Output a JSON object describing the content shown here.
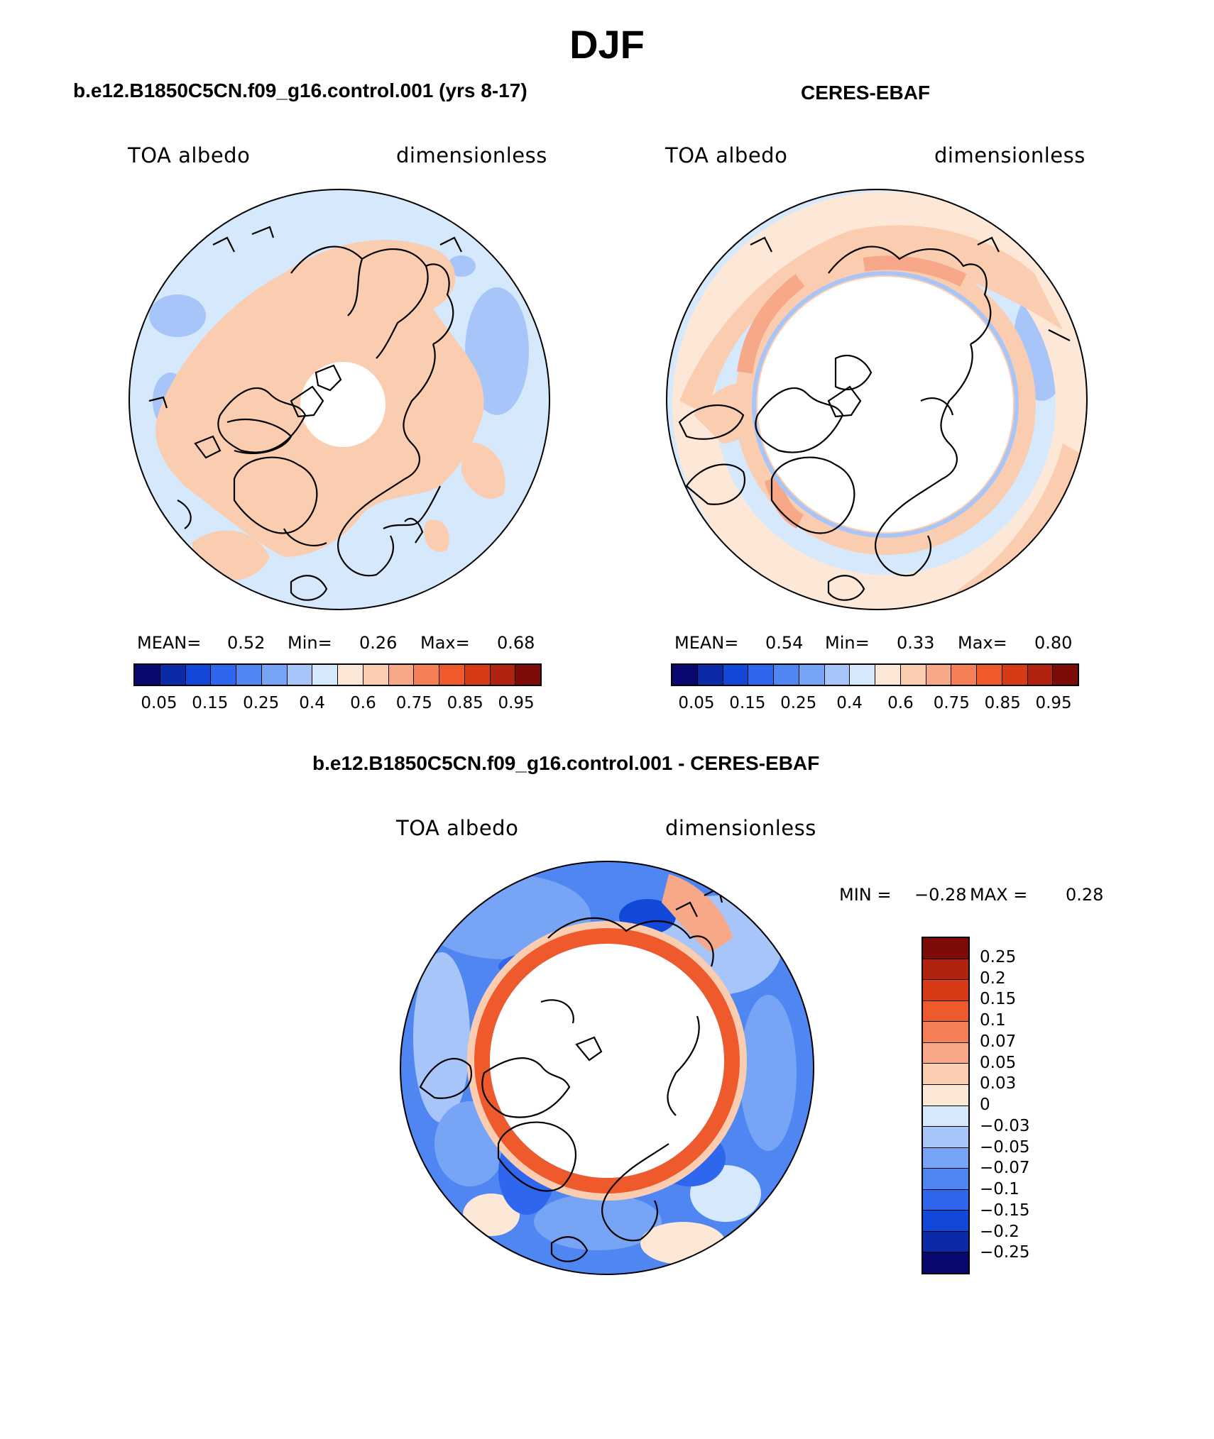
{
  "figure": {
    "title": "DJF"
  },
  "panels": {
    "model": {
      "title": "b.e12.B1850C5CN.f09_g16.control.001 (yrs 8-17)",
      "left_label": "TOA albedo",
      "right_label": "dimensionless",
      "mean_label": "MEAN=",
      "mean_value": "0.52",
      "min_label": "Min=",
      "min_value": "0.26",
      "max_label": "Max=",
      "max_value": "0.68"
    },
    "obs": {
      "title": "CERES-EBAF",
      "left_label": "TOA albedo",
      "right_label": "dimensionless",
      "mean_label": "MEAN=",
      "mean_value": "0.54",
      "min_label": "Min=",
      "min_value": "0.33",
      "max_label": "Max=",
      "max_value": "0.80"
    },
    "diff": {
      "title": "b.e12.B1850C5CN.f09_g16.control.001 - CERES-EBAF",
      "left_label": "TOA albedo",
      "right_label": "dimensionless",
      "min_label": "MIN =",
      "min_value": "−0.28",
      "max_label": "MAX =",
      "max_value": "0.28"
    }
  },
  "colorbars": {
    "albedo": {
      "colors": [
        "#08086e",
        "#0a2aa8",
        "#1248d8",
        "#2f66ee",
        "#4f86f2",
        "#77a4f5",
        "#a7c5f8",
        "#d6e8fb",
        "#fde8d8",
        "#fbcdb0",
        "#f7a888",
        "#f47e55",
        "#ee5a2c",
        "#d63a17",
        "#b02310",
        "#7d0c08"
      ],
      "tick_labels": [
        "0.05",
        "0.15",
        "0.25",
        "0.4",
        "0.6",
        "0.75",
        "0.85",
        "0.95"
      ]
    },
    "difference": {
      "colors": [
        "#7d0c08",
        "#b02310",
        "#d63a17",
        "#ee5a2c",
        "#f47e55",
        "#f7a888",
        "#fbcdb0",
        "#fde8d8",
        "#d6e8fb",
        "#a7c5f8",
        "#77a4f5",
        "#4f86f2",
        "#2f66ee",
        "#1248d8",
        "#0a2aa8",
        "#08086e"
      ],
      "tick_labels": [
        "0.25",
        "0.2",
        "0.15",
        "0.1",
        "0.07",
        "0.05",
        "0.03",
        "0",
        "−0.03",
        "−0.05",
        "−0.07",
        "−0.1",
        "−0.15",
        "−0.2",
        "−0.25"
      ]
    }
  },
  "chart_data": [
    {
      "type": "heatmap",
      "projection": "north polar stereographic",
      "title": "b.e12.B1850C5CN.f09_g16.control.001 (yrs 8-17)",
      "variable": "TOA albedo",
      "units": "dimensionless",
      "mean": 0.52,
      "min": 0.26,
      "max": 0.68,
      "contour_levels": [
        0.05,
        0.1,
        0.15,
        0.2,
        0.25,
        0.3,
        0.4,
        0.5,
        0.6,
        0.65,
        0.75,
        0.8,
        0.85,
        0.9,
        0.95
      ]
    },
    {
      "type": "heatmap",
      "projection": "north polar stereographic",
      "title": "CERES-EBAF",
      "variable": "TOA albedo",
      "units": "dimensionless",
      "mean": 0.54,
      "min": 0.33,
      "max": 0.8,
      "contour_levels": [
        0.05,
        0.1,
        0.15,
        0.2,
        0.25,
        0.3,
        0.4,
        0.5,
        0.6,
        0.65,
        0.75,
        0.8,
        0.85,
        0.9,
        0.95
      ]
    },
    {
      "type": "heatmap",
      "projection": "north polar stereographic",
      "title": "b.e12.B1850C5CN.f09_g16.control.001 - CERES-EBAF",
      "variable": "TOA albedo",
      "units": "dimensionless",
      "min": -0.28,
      "max": 0.28,
      "contour_levels": [
        -0.25,
        -0.2,
        -0.15,
        -0.1,
        -0.07,
        -0.05,
        -0.03,
        0,
        0.03,
        0.05,
        0.07,
        0.1,
        0.15,
        0.2,
        0.25
      ]
    }
  ]
}
